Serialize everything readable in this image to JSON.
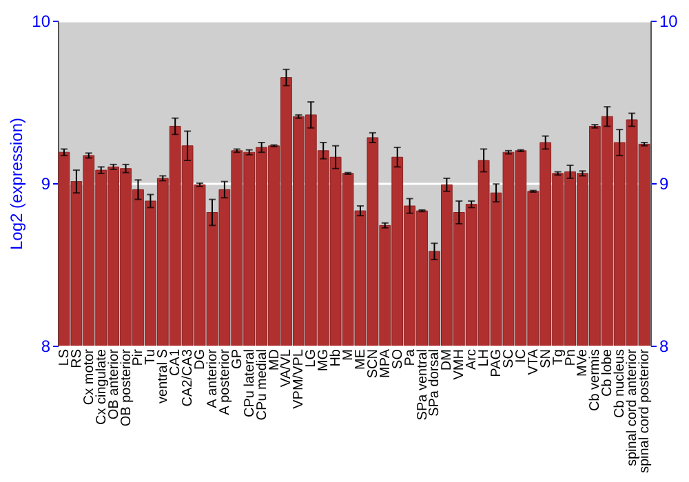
{
  "chart_data": {
    "type": "bar",
    "ylabel": "Log2 (expression)",
    "categories": [
      "LS",
      "RS",
      "Cx motor",
      "Cx cingulate",
      "OB anterior",
      "OB posterior",
      "Pir",
      "Tu",
      "ventral S",
      "CA1",
      "CA2/CA3",
      "DG",
      "A anterior",
      "A posterior",
      "GP",
      "CPu lateral",
      "CPu medial",
      "MD",
      "VA/VL",
      "VPM/VPL",
      "LG",
      "MG",
      "Hb",
      "M",
      "ME",
      "SCN",
      "MPA",
      "SO",
      "Pa",
      "SPa ventral",
      "SPa dorsal",
      "DM",
      "VMH",
      "Arc",
      "LH",
      "PAG",
      "SC",
      "IC",
      "VTA",
      "SN",
      "Tg",
      "Pn",
      "MVe",
      "Cb vermis",
      "Cb lobe",
      "Cb nucleus",
      "spinal cord anterior",
      "spinal cord posterior"
    ],
    "values": [
      9.19,
      9.01,
      9.17,
      9.08,
      9.1,
      9.09,
      8.96,
      8.89,
      9.03,
      9.35,
      9.23,
      8.99,
      8.82,
      8.96,
      9.2,
      9.19,
      9.22,
      9.23,
      9.65,
      9.41,
      9.42,
      9.2,
      9.16,
      9.06,
      8.83,
      9.28,
      8.74,
      9.16,
      8.86,
      8.83,
      8.58,
      8.99,
      8.82,
      8.87,
      9.14,
      8.94,
      9.19,
      9.2,
      8.95,
      9.25,
      9.06,
      9.07,
      9.06,
      9.35,
      9.41,
      9.25,
      9.39,
      9.24
    ],
    "errors": [
      0.02,
      0.07,
      0.015,
      0.02,
      0.015,
      0.025,
      0.06,
      0.04,
      0.015,
      0.05,
      0.09,
      0.01,
      0.08,
      0.05,
      0.01,
      0.015,
      0.03,
      0.005,
      0.05,
      0.01,
      0.08,
      0.05,
      0.07,
      0.005,
      0.03,
      0.03,
      0.015,
      0.06,
      0.045,
      0.005,
      0.05,
      0.04,
      0.07,
      0.02,
      0.07,
      0.055,
      0.01,
      0.005,
      0.005,
      0.04,
      0.01,
      0.04,
      0.015,
      0.01,
      0.06,
      0.08,
      0.04,
      0.01
    ],
    "color": "#b03030",
    "ylim": [
      8,
      10
    ],
    "yticks": [
      8,
      9,
      10
    ],
    "y2lim": [
      8,
      10
    ],
    "y2ticks": [
      8,
      9,
      10
    ],
    "grid": "y"
  }
}
